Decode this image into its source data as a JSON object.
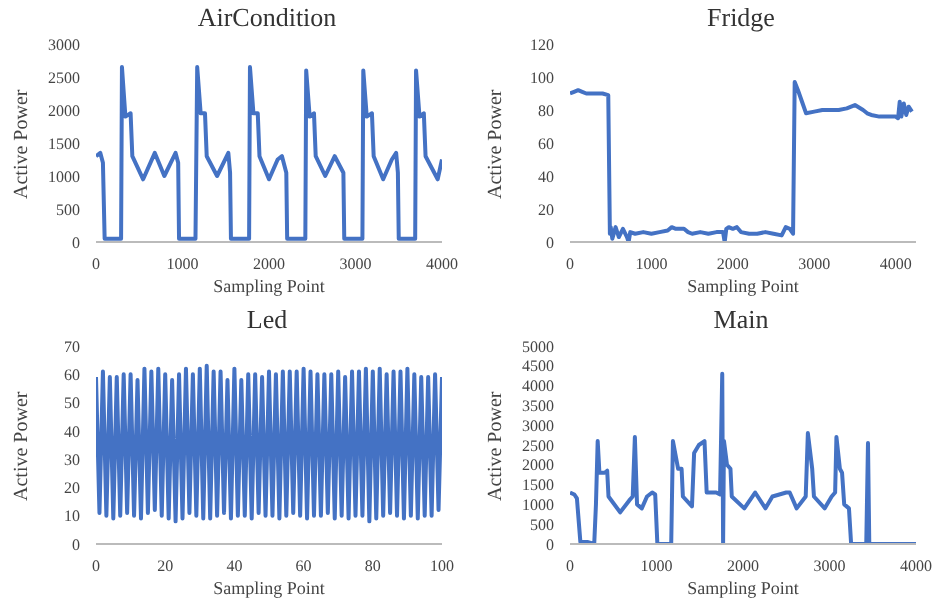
{
  "chart_data": [
    {
      "type": "line",
      "title": "AirCondition",
      "xlabel": "Sampling Point",
      "ylabel": "Active Power",
      "color": "#4472c4",
      "marker": "none",
      "xlim": [
        0,
        4000
      ],
      "xticks": [
        0,
        1000,
        2000,
        3000,
        4000
      ],
      "ylim": [
        0,
        3000
      ],
      "yticks": [
        0,
        500,
        1000,
        1500,
        2000,
        2500,
        3000
      ],
      "x": [
        0,
        50,
        80,
        100,
        290,
        300,
        340,
        400,
        420,
        545,
        680,
        790,
        920,
        950,
        960,
        1150,
        1170,
        1210,
        1260,
        1280,
        1400,
        1530,
        1550,
        1560,
        1770,
        1780,
        1820,
        1870,
        1890,
        2000,
        2100,
        2150,
        2200,
        2210,
        2420,
        2430,
        2470,
        2520,
        2540,
        2650,
        2760,
        2860,
        2870,
        3080,
        3090,
        3130,
        3190,
        3210,
        3320,
        3420,
        3470,
        3490,
        3500,
        3690,
        3700,
        3740,
        3790,
        3810,
        3950,
        4000
      ],
      "values": [
        1300,
        1350,
        1200,
        50,
        50,
        2650,
        1900,
        1950,
        1300,
        950,
        1350,
        1000,
        1350,
        1200,
        50,
        50,
        2650,
        1950,
        1950,
        1300,
        1000,
        1350,
        1050,
        50,
        50,
        2650,
        1950,
        1950,
        1300,
        950,
        1250,
        1300,
        1050,
        50,
        50,
        2600,
        1900,
        1950,
        1300,
        1000,
        1300,
        1050,
        50,
        50,
        2600,
        1900,
        1950,
        1300,
        950,
        1250,
        1350,
        1050,
        50,
        50,
        2600,
        1900,
        1950,
        1300,
        950,
        1250
      ]
    },
    {
      "type": "line",
      "title": "Fridge",
      "xlabel": "Sampling Point",
      "ylabel": "Active Power",
      "color": "#4472c4",
      "marker": "none",
      "xlim": [
        0,
        4250
      ],
      "xticks": [
        0,
        1000,
        2000,
        3000,
        4000
      ],
      "ylim": [
        0,
        120
      ],
      "yticks": [
        0,
        20,
        40,
        60,
        80,
        100,
        120
      ],
      "x": [
        0,
        50,
        100,
        150,
        200,
        300,
        400,
        470,
        490,
        500,
        520,
        560,
        600,
        650,
        700,
        720,
        740,
        800,
        900,
        1000,
        1100,
        1200,
        1250,
        1300,
        1400,
        1450,
        1500,
        1600,
        1700,
        1800,
        1880,
        1900,
        1920,
        1950,
        2000,
        2050,
        2100,
        2200,
        2300,
        2400,
        2500,
        2600,
        2650,
        2700,
        2740,
        2760,
        2800,
        2850,
        2900,
        3000,
        3100,
        3200,
        3300,
        3400,
        3500,
        3600,
        3650,
        3700,
        3800,
        3900,
        4000,
        4030,
        4050,
        4070,
        4100,
        4130,
        4160,
        4200
      ],
      "values": [
        90,
        91,
        92,
        91,
        90,
        90,
        90,
        89,
        5,
        9,
        2,
        9,
        3,
        8,
        3,
        0,
        6,
        5,
        6,
        5,
        6,
        7,
        9,
        8,
        8,
        6,
        5,
        6,
        5,
        6,
        6,
        0,
        8,
        9,
        8,
        9,
        6,
        5,
        5,
        6,
        5,
        4,
        9,
        8,
        5,
        97,
        92,
        85,
        78,
        79,
        80,
        80,
        80,
        81,
        83,
        80,
        78,
        77,
        76,
        76,
        76,
        75,
        85,
        76,
        84,
        77,
        82,
        79
      ]
    },
    {
      "type": "line",
      "title": "Led",
      "xlabel": "Sampling Point",
      "ylabel": "Active Power",
      "color": "#4472c4",
      "marker": "none",
      "xlim": [
        0,
        100
      ],
      "xticks": [
        0,
        20,
        40,
        60,
        80,
        100
      ],
      "ylim": [
        0,
        70
      ],
      "yticks": [
        0,
        10,
        20,
        30,
        40,
        50,
        60,
        70
      ],
      "x": [
        0,
        1,
        2,
        3,
        4,
        5,
        6,
        7,
        8,
        9,
        10,
        11,
        12,
        13,
        14,
        15,
        16,
        17,
        18,
        19,
        20,
        21,
        22,
        23,
        24,
        25,
        26,
        27,
        28,
        29,
        30,
        31,
        32,
        33,
        34,
        35,
        36,
        37,
        38,
        39,
        40,
        41,
        42,
        43,
        44,
        45,
        46,
        47,
        48,
        49,
        50,
        51,
        52,
        53,
        54,
        55,
        56,
        57,
        58,
        59,
        60,
        61,
        62,
        63,
        64,
        65,
        66,
        67,
        68,
        69,
        70,
        71,
        72,
        73,
        74,
        75,
        76,
        77,
        78,
        79,
        80,
        81,
        82,
        83,
        84,
        85,
        86,
        87,
        88,
        89,
        90,
        91,
        92,
        93,
        94,
        95,
        96,
        97,
        98,
        99,
        100
      ],
      "values": [
        59,
        11,
        61,
        10,
        59,
        9,
        59,
        10,
        60,
        11,
        60,
        10,
        58,
        9,
        62,
        11,
        61,
        12,
        62,
        10,
        60,
        9,
        58,
        8,
        60,
        9,
        62,
        11,
        60,
        10,
        62,
        9,
        63,
        9,
        61,
        10,
        61,
        11,
        58,
        9,
        62,
        10,
        58,
        10,
        60,
        9,
        60,
        11,
        59,
        10,
        61,
        10,
        60,
        9,
        61,
        10,
        61,
        11,
        61,
        10,
        62,
        9,
        61,
        10,
        60,
        10,
        60,
        11,
        60,
        9,
        61,
        10,
        59,
        9,
        61,
        10,
        61,
        10,
        62,
        8,
        61,
        9,
        62,
        10,
        60,
        11,
        61,
        10,
        61,
        9,
        62,
        10,
        60,
        9,
        59,
        10,
        59,
        10,
        60,
        12,
        59
      ]
    },
    {
      "type": "line",
      "title": "Main",
      "xlabel": "Sampling Point",
      "ylabel": "Active Power",
      "color": "#4472c4",
      "marker": "none",
      "xlim": [
        0,
        4000
      ],
      "xticks": [
        0,
        1000,
        2000,
        3000,
        4000
      ],
      "ylim": [
        0,
        5000
      ],
      "yticks": [
        0,
        500,
        1000,
        1500,
        2000,
        2500,
        3000,
        3500,
        4000,
        4500,
        5000
      ],
      "x": [
        0,
        50,
        80,
        120,
        200,
        280,
        300,
        320,
        340,
        400,
        430,
        445,
        580,
        685,
        725,
        750,
        775,
        830,
        890,
        950,
        985,
        1010,
        1170,
        1190,
        1250,
        1290,
        1305,
        1410,
        1435,
        1490,
        1555,
        1580,
        1690,
        1735,
        1760,
        1770,
        1780,
        1815,
        1855,
        1870,
        2015,
        2140,
        2260,
        2340,
        2500,
        2540,
        2620,
        2725,
        2750,
        2800,
        2820,
        2945,
        3025,
        3065,
        3080,
        3120,
        3145,
        3170,
        3225,
        3250,
        3425,
        3445,
        3460,
        4000
      ],
      "values": [
        1300,
        1250,
        1150,
        50,
        50,
        0,
        1000,
        2600,
        1800,
        1800,
        1850,
        1200,
        800,
        1100,
        1200,
        2700,
        1000,
        900,
        1200,
        1300,
        1250,
        0,
        0,
        2600,
        1900,
        1900,
        1200,
        950,
        2300,
        2500,
        2600,
        1300,
        1300,
        1250,
        4300,
        0,
        2600,
        2000,
        1900,
        1200,
        900,
        1300,
        900,
        1200,
        1300,
        1300,
        900,
        1200,
        2800,
        1900,
        1200,
        900,
        1200,
        1300,
        2700,
        1900,
        1800,
        1000,
        900,
        0,
        0,
        2550,
        0,
        0
      ]
    }
  ]
}
